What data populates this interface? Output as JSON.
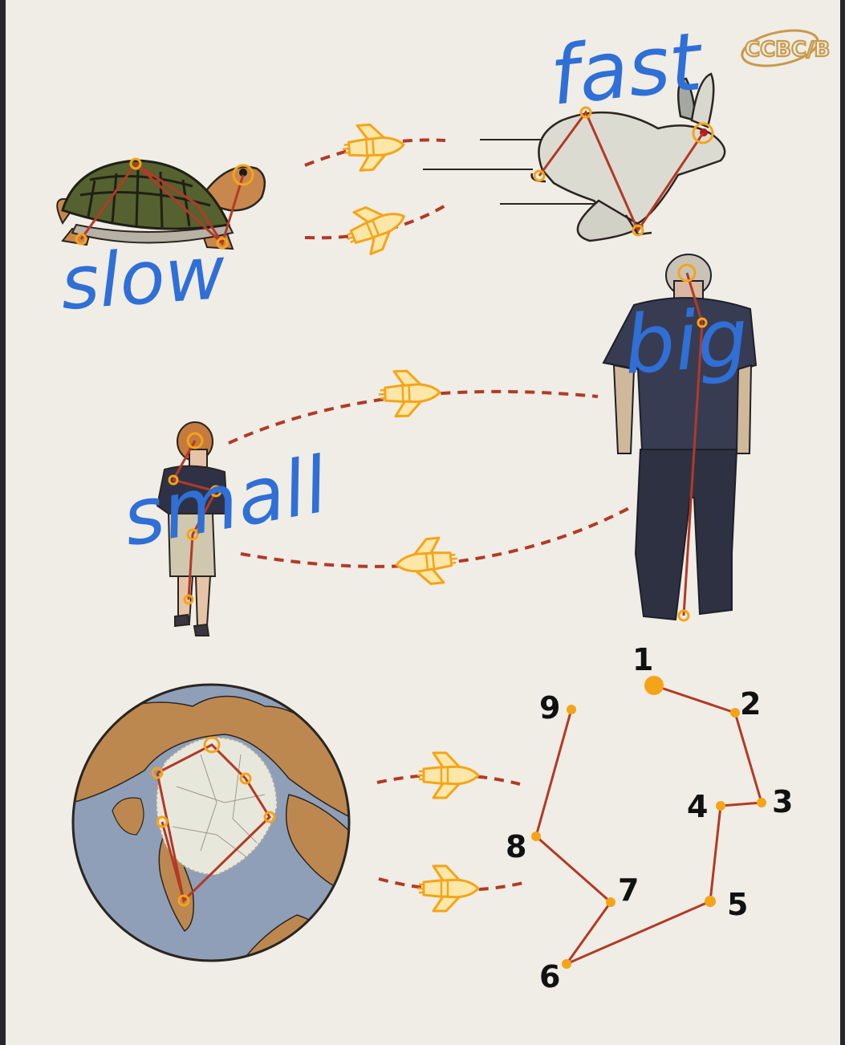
{
  "logo_text": "CCBC/B",
  "words": {
    "slow": "slow",
    "fast": "fast",
    "small": "small",
    "big": "big"
  },
  "dot_numbers": [
    "1",
    "2",
    "3",
    "4",
    "5",
    "6",
    "7",
    "8",
    "9"
  ],
  "colors": {
    "paper": "#efede5",
    "frame": "#26282c",
    "ink_blue": "#2f6fd6",
    "connector_red": "#b23a26",
    "dot_orange": "#f5a418",
    "ocean": "#8f9fb7",
    "land": "#bd884f",
    "ice": "#e8e7dc"
  },
  "icons": [
    "turtle-icon",
    "hare-icon",
    "boy-icon",
    "man-icon",
    "arctic-globe-icon",
    "rocket-icon"
  ]
}
